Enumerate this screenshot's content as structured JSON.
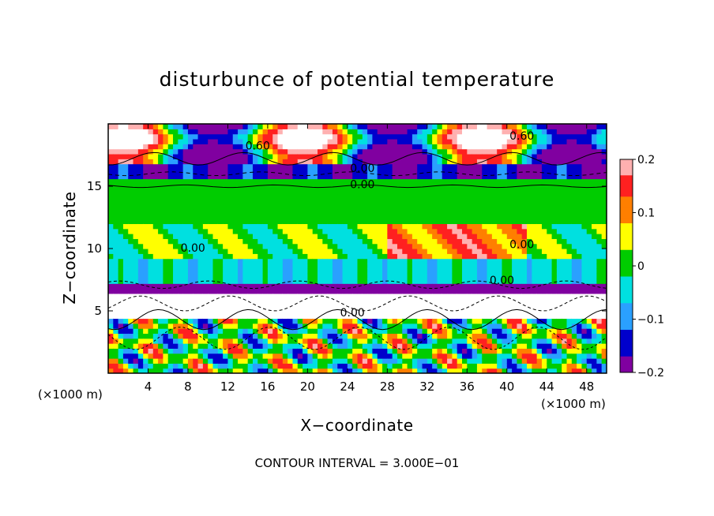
{
  "chart_data": {
    "type": "heatmap",
    "title": "disturbunce of potential temperature",
    "xlabel": "X−coordinate",
    "ylabel": "Z−coordinate",
    "x_unit": "(×1000 m)",
    "y_unit": "(×1000 m)",
    "x_ticks": [
      4,
      8,
      12,
      16,
      20,
      24,
      28,
      32,
      36,
      40,
      44,
      48
    ],
    "y_ticks": [
      5,
      10,
      15
    ],
    "xlim": [
      0,
      50
    ],
    "ylim": [
      0,
      20
    ],
    "colorbar": {
      "range": [
        -0.2,
        0.2
      ],
      "tick_values": [
        0.2,
        0.1,
        0,
        -0.1,
        -0.2
      ],
      "tick_labels": [
        "0.2",
        "0.1",
        "0",
        "−0.1",
        "−0.2"
      ],
      "colors": [
        "#ffb0b0",
        "#ff2020",
        "#ff7f00",
        "#ffff00",
        "#00cc00",
        "#00e0e0",
        "#2aa0ff",
        "#0000cc",
        "#8000a0"
      ]
    },
    "contour_labels": [
      {
        "text": "0.60",
        "x": 15,
        "z": 18.2
      },
      {
        "text": "0.60",
        "x": 41.5,
        "z": 19.0
      },
      {
        "text": "0.00",
        "x": 25.5,
        "z": 16.4
      },
      {
        "text": "0.00",
        "x": 25.5,
        "z": 15.1
      },
      {
        "text": "0.00",
        "x": 41.5,
        "z": 10.3
      },
      {
        "text": "0.00",
        "x": 8.5,
        "z": 10.0
      },
      {
        "text": "0.00",
        "x": 39.5,
        "z": 7.4
      },
      {
        "text": "0.00",
        "x": 24.5,
        "z": 4.8
      }
    ],
    "footnote": "CONTOUR INTERVAL = 3.000E−01"
  }
}
